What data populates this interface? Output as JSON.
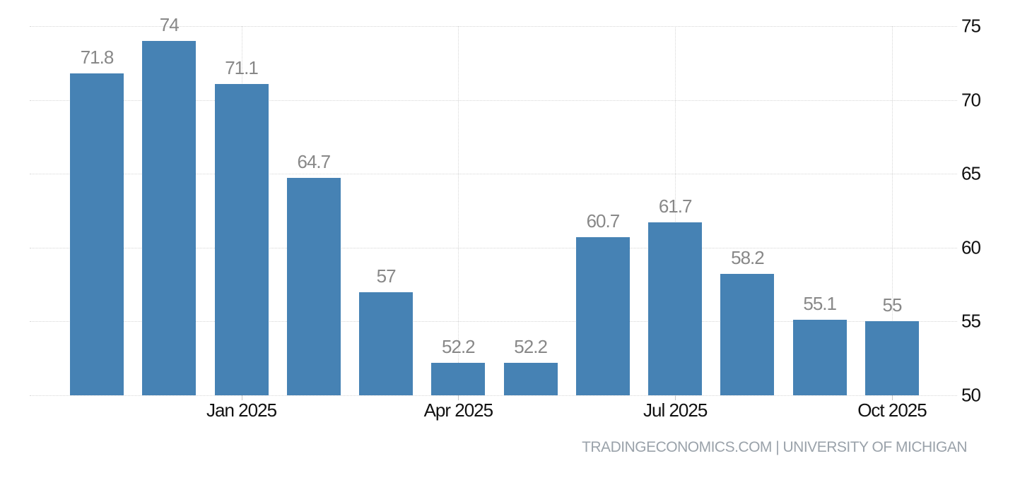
{
  "chart_data": {
    "type": "bar",
    "title": "",
    "xlabel": "",
    "ylabel": "",
    "values": [
      71.8,
      74,
      71.1,
      64.7,
      57,
      52.2,
      52.2,
      60.7,
      61.7,
      58.2,
      55.1,
      55
    ],
    "value_labels": [
      "71.8",
      "74",
      "71.1",
      "64.7",
      "57",
      "52.2",
      "52.2",
      "60.7",
      "61.7",
      "58.2",
      "55.1",
      "55"
    ],
    "x_tick_labels": [
      "Jan 2025",
      "Apr 2025",
      "Jul 2025",
      "Oct 2025"
    ],
    "x_tick_bar_indices": [
      2,
      5,
      8,
      11
    ],
    "y_ticks": [
      50,
      55,
      60,
      65,
      70,
      75
    ],
    "y_tick_labels": [
      "50",
      "55",
      "60",
      "65",
      "70",
      "75"
    ],
    "ylim": [
      50,
      75
    ],
    "y_axis_position": "right",
    "grid": "dotted",
    "legend_position": "none",
    "colors": {
      "bar": "#4682b4",
      "value_label": "#888888",
      "axis_label": "#111111",
      "gridline": "#d6d6d6",
      "tick": "#c6c6c6",
      "background": "#ffffff"
    }
  },
  "footer": {
    "credit": "TRADINGECONOMICS.COM | UNIVERSITY OF MICHIGAN"
  }
}
